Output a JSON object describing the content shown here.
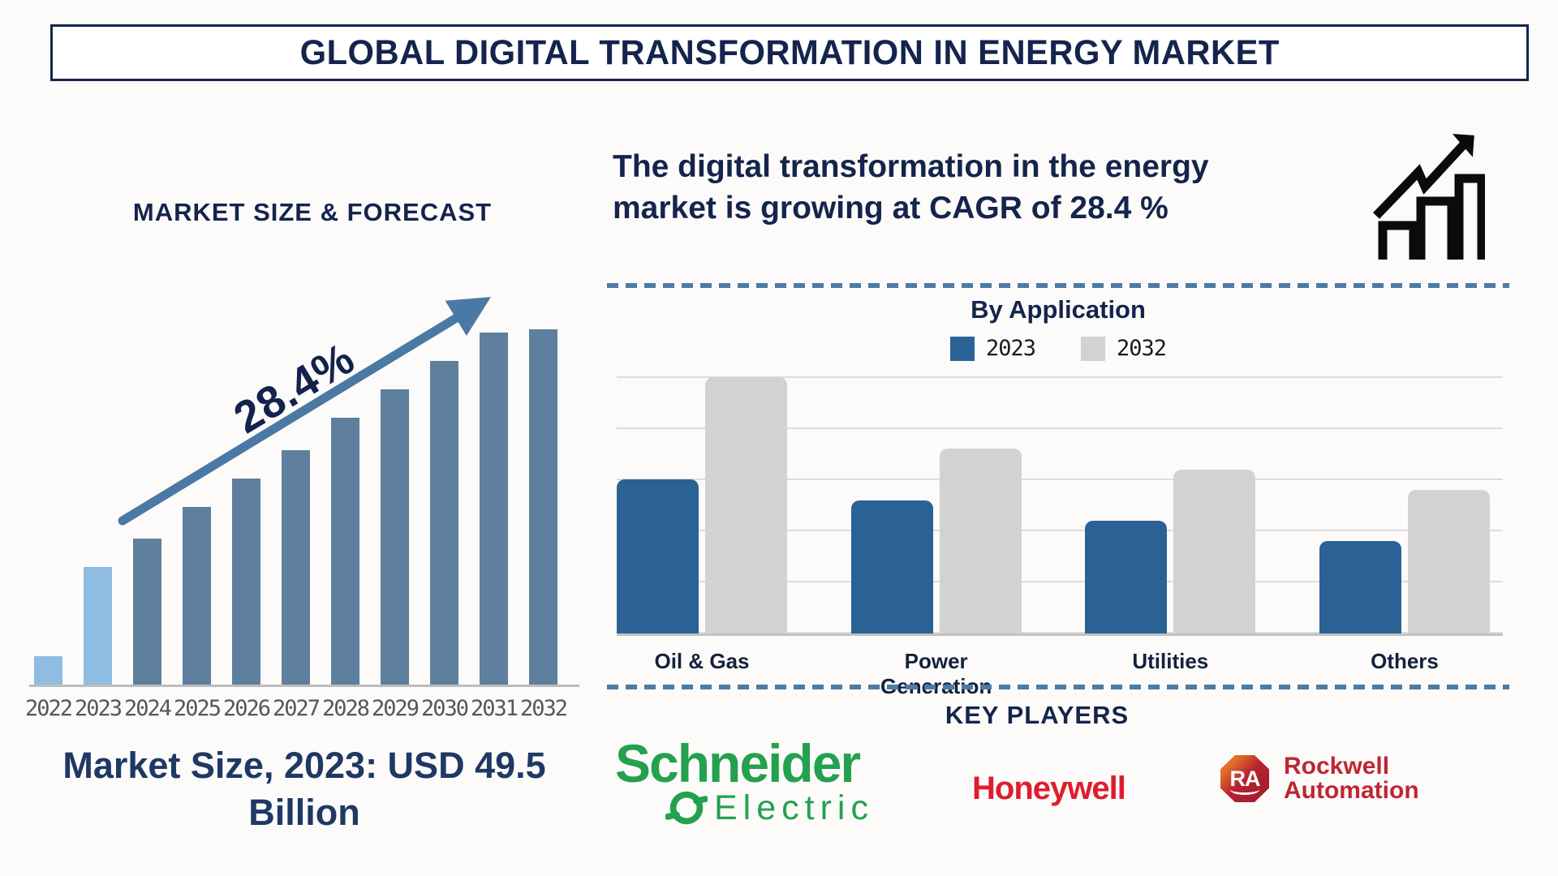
{
  "title": "GLOBAL DIGITAL TRANSFORMATION IN ENERGY MARKET",
  "left_panel": {
    "heading": "MARKET SIZE & FORECAST",
    "cagr_label": "28.4%",
    "market_size_note": "Market Size, 2023: USD 49.5 Billion"
  },
  "right_panel": {
    "cagr_statement": "The digital transformation in the energy market is growing at CAGR of 28.4 %",
    "by_application": {
      "title": "By Application"
    },
    "key_players": {
      "title": "KEY PLAYERS"
    }
  },
  "logos": {
    "schneider": {
      "word1": "Schneider",
      "word2": "Electric",
      "color": "#23A14E"
    },
    "honeywell": {
      "word": "Honeywell",
      "color": "#DE1D2E"
    },
    "rockwell": {
      "badge": "RA",
      "word1": "Rockwell",
      "word2": "Automation",
      "color": "#BE2633"
    }
  },
  "colors": {
    "navy": "#14244C",
    "steel_bar": "#5E7F9E",
    "light_bar": "#8FBCE3",
    "arrow": "#4A79A4",
    "app_blue": "#2B6295",
    "app_gray": "#D2D2D2",
    "dashed_line": "#4C7BA6",
    "axis_gray": "#BDBDBD",
    "tick_gray": "#575757"
  },
  "chart_data": [
    {
      "type": "bar",
      "title": "MARKET SIZE & FORECAST",
      "categories": [
        "2022",
        "2023",
        "2024",
        "2025",
        "2026",
        "2027",
        "2028",
        "2029",
        "2030",
        "2031",
        "2032"
      ],
      "values": [
        8,
        33,
        41,
        50,
        58,
        66,
        75,
        83,
        91,
        99,
        100
      ],
      "unit": "relative bar height, % of 2032 bar (no numeric axis shown)",
      "xlabel": "",
      "ylabel": "",
      "grid": false,
      "highlight_light_blue_indices": [
        0,
        1
      ],
      "bar_color_default": "#5E7F9E",
      "bar_color_highlight": "#8FBCE3",
      "annotations": [
        "28.4% growth arrow",
        "Market Size, 2023: USD 49.5 Billion"
      ]
    },
    {
      "type": "bar",
      "title": "By Application",
      "categories": [
        "Oil & Gas",
        "Power Generation",
        "Utilities",
        "Others"
      ],
      "series": [
        {
          "name": "2023",
          "color": "#2B6295",
          "values": [
            60,
            52,
            44,
            36
          ]
        },
        {
          "name": "2032",
          "color": "#D2D2D2",
          "values": [
            100,
            72,
            64,
            56
          ]
        }
      ],
      "unit": "relative bar height, % of tallest bar (no numeric axis shown)",
      "ylim": [
        0,
        100
      ],
      "grid": true,
      "legend_position": "top"
    }
  ]
}
